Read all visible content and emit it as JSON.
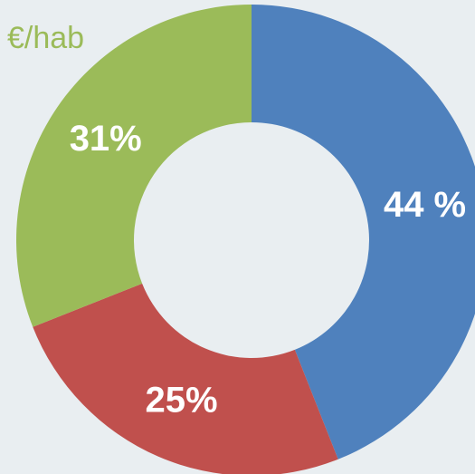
{
  "chart_data": {
    "type": "donut",
    "subtitle": "€/hab",
    "categories": [
      null,
      null,
      null
    ],
    "values": [
      44,
      25,
      31
    ],
    "value_labels": [
      "44 %",
      "25%",
      "31%"
    ],
    "colors": [
      "#4f81bd",
      "#c0504d",
      "#9bbb59"
    ]
  }
}
